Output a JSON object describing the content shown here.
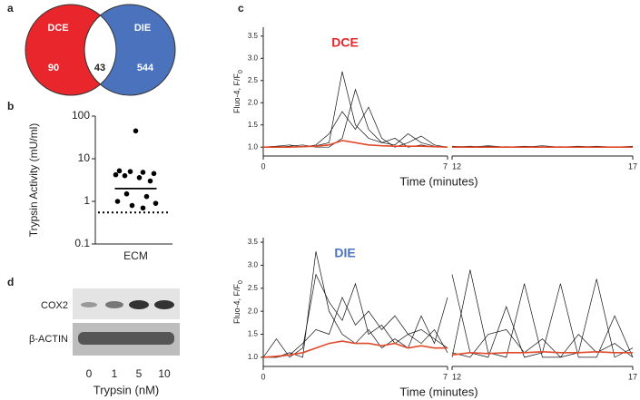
{
  "panel_labels": [
    "a",
    "b",
    "c",
    "d"
  ],
  "venn": {
    "sets": [
      {
        "name": "DCE",
        "color": "#e8262b",
        "only": 90
      },
      {
        "name": "DIE",
        "color": "#4a72bd",
        "only": 544
      }
    ],
    "overlap": 43
  },
  "blot": {
    "rows": [
      "COX2",
      "β-ACTIN"
    ],
    "lanes": [
      "0",
      "1",
      "5",
      "10"
    ],
    "x_label": "Trypsin (nM)"
  },
  "chart_data": [
    {
      "type": "scatter",
      "y_label": "Trypsin Activity (mU/ml)",
      "categories": [
        "ECM"
      ],
      "values": [
        45,
        5.2,
        5,
        4.8,
        4.5,
        4.2,
        4,
        3.6,
        3,
        1.5,
        1.3,
        1,
        0.9,
        0.8,
        0.7
      ],
      "mean": 2,
      "threshold": 0.55,
      "log_y": true,
      "color": "#000000",
      "ylim": [
        0.1,
        100
      ],
      "yticks": [
        0.1,
        1,
        10,
        100
      ]
    },
    {
      "type": "line",
      "title": "DCE",
      "title_color": "#e8262b",
      "x_label": "Time (minutes)",
      "y_label": "Fluo-4, F/F",
      "y_label_sub": "0",
      "xlim": [
        0,
        17
      ],
      "x_break": [
        7,
        12
      ],
      "xticks": [
        0,
        7,
        12,
        17
      ],
      "ylim": [
        0.8,
        3.7
      ],
      "yticks": [
        {
          "value": 1,
          "label": "1.0"
        },
        1.5,
        {
          "value": 2,
          "label": "2.0"
        },
        2.5,
        {
          "value": 3,
          "label": "3.0"
        },
        3.5
      ],
      "x": [
        0,
        0.5,
        1,
        1.5,
        2,
        2.5,
        3,
        3.5,
        4,
        4.5,
        5,
        5.5,
        6,
        6.5,
        7,
        12,
        12.5,
        13,
        13.5,
        14,
        14.5,
        15,
        15.5,
        16,
        16.5,
        17
      ],
      "series": [
        {
          "color": "#111111",
          "values": [
            1.0,
            1.02,
            1.05,
            1.0,
            1.03,
            1.1,
            2.7,
            1.5,
            1.2,
            1.1,
            1.05,
            1.3,
            1.1,
            1.02,
            1.0,
            1.02,
            1.0,
            1.03,
            1.0,
            1.02,
            1.0,
            1.01,
            1.0,
            1.02,
            1.0,
            1.0
          ]
        },
        {
          "color": "#111111",
          "values": [
            1.0,
            1.0,
            1.02,
            1.05,
            1.0,
            1.0,
            1.2,
            2.3,
            1.4,
            1.1,
            1.2,
            1.0,
            1.05,
            1.0,
            1.0,
            1.0,
            1.02,
            1.0,
            1.01,
            1.0,
            1.03,
            1.0,
            1.0,
            1.01,
            1.0,
            1.02
          ]
        },
        {
          "color": "#111111",
          "values": [
            1.0,
            1.02,
            1.0,
            1.0,
            1.05,
            1.3,
            1.8,
            1.4,
            1.9,
            1.2,
            1.0,
            1.1,
            1.25,
            1.05,
            1.0,
            1.0,
            1.0,
            1.02,
            1.0,
            1.0,
            1.01,
            1.0,
            1.02,
            1.0,
            1.0,
            1.0
          ]
        },
        {
          "color": "#e04a2a",
          "values": [
            1.0,
            1.0,
            1.0,
            1.01,
            1.02,
            1.05,
            1.15,
            1.1,
            1.05,
            1.03,
            1.02,
            1.02,
            1.02,
            1.01,
            1.0,
            1.0,
            1.0,
            1.0,
            1.0,
            1.0,
            1.0,
            1.0,
            1.0,
            1.0,
            1.0,
            1.0
          ]
        }
      ]
    },
    {
      "type": "line",
      "title": "DIE",
      "title_color": "#4a72bd",
      "x_label": "Time (minutes)",
      "y_label": "Fluo-4, F/F",
      "y_label_sub": "0",
      "xlim": [
        0,
        17
      ],
      "x_break": [
        7,
        12
      ],
      "xticks": [
        0,
        7,
        12,
        17
      ],
      "ylim": [
        0.8,
        3.6
      ],
      "yticks": [
        {
          "value": 1,
          "label": "1.0"
        },
        1.5,
        {
          "value": 2,
          "label": "2.0"
        },
        2.5,
        {
          "value": 3,
          "label": "3.0"
        },
        3.5
      ],
      "x": [
        0,
        0.5,
        1,
        1.5,
        2,
        2.5,
        3,
        3.5,
        4,
        4.5,
        5,
        5.5,
        6,
        6.5,
        7,
        12,
        12.5,
        13,
        13.5,
        14,
        14.5,
        15,
        15.5,
        16,
        16.5,
        17
      ],
      "series": [
        {
          "color": "#111111",
          "values": [
            1.0,
            1.0,
            1.1,
            1.0,
            3.3,
            2.0,
            1.5,
            1.3,
            1.6,
            1.2,
            1.4,
            1.2,
            1.9,
            1.3,
            2.3,
            2.8,
            1.1,
            1.0,
            2.1,
            1.0,
            1.1,
            2.6,
            1.0,
            1.0,
            1.9,
            1.0
          ]
        },
        {
          "color": "#111111",
          "values": [
            1.0,
            1.4,
            1.0,
            1.2,
            2.8,
            2.2,
            1.8,
            2.6,
            1.5,
            1.7,
            1.3,
            1.5,
            1.6,
            1.4,
            1.2,
            1.0,
            2.9,
            1.1,
            1.0,
            2.6,
            1.0,
            1.0,
            1.1,
            2.7,
            1.0,
            1.2
          ]
        },
        {
          "color": "#111111",
          "values": [
            1.0,
            1.0,
            1.05,
            1.3,
            1.6,
            1.5,
            2.3,
            1.7,
            2.0,
            1.6,
            1.9,
            1.5,
            1.3,
            1.6,
            1.1,
            1.1,
            1.0,
            1.5,
            1.6,
            1.1,
            1.4,
            1.0,
            1.5,
            1.1,
            1.3,
            1.0
          ]
        },
        {
          "color": "#e04a2a",
          "values": [
            1.0,
            1.02,
            1.05,
            1.1,
            1.2,
            1.3,
            1.35,
            1.3,
            1.3,
            1.25,
            1.3,
            1.2,
            1.25,
            1.2,
            1.2,
            1.05,
            1.1,
            1.08,
            1.1,
            1.1,
            1.12,
            1.1,
            1.1,
            1.12,
            1.1,
            1.1
          ]
        }
      ]
    }
  ]
}
